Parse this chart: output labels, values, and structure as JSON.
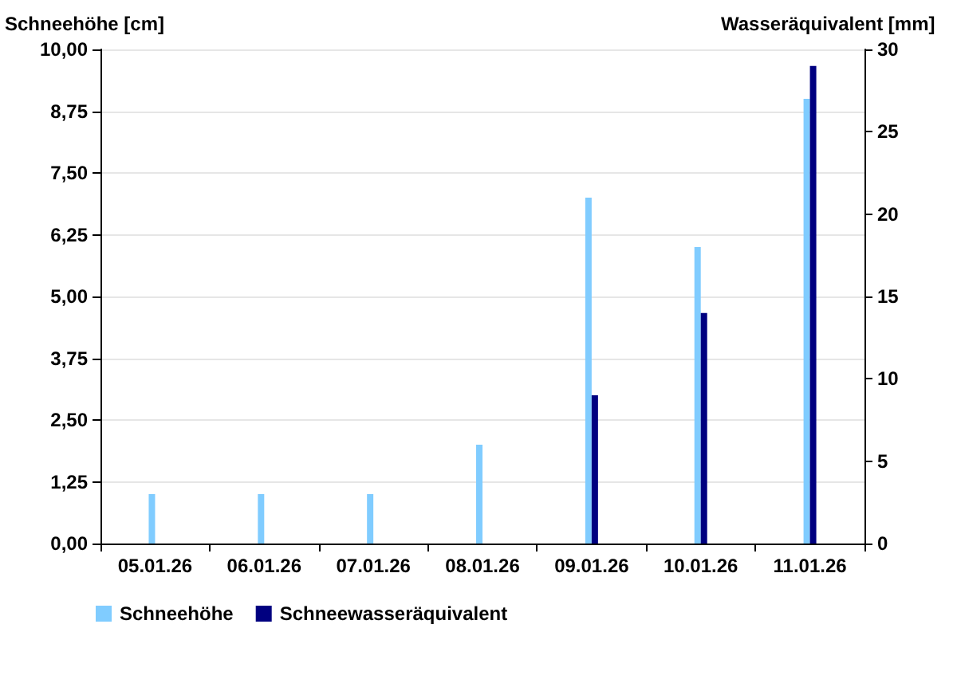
{
  "chart_data": {
    "type": "bar",
    "ylabel": "Schneehöhe [cm]",
    "y2label": "Wasseräquivalent [mm]",
    "categories": [
      "05.01.26",
      "06.01.26",
      "07.01.26",
      "08.01.26",
      "09.01.26",
      "10.01.26",
      "11.01.26"
    ],
    "series": [
      {
        "name": "Schneehöhe",
        "color": "#80ccff",
        "values": [
          1,
          1,
          1,
          2,
          7,
          6,
          9
        ]
      },
      {
        "name": "Schneewasseräquivalent",
        "color": "#000080",
        "axis": "y2",
        "values": [
          null,
          null,
          null,
          null,
          9,
          14,
          29
        ]
      }
    ],
    "ylim": [
      0,
      10
    ],
    "yticks": [
      {
        "value": 0,
        "label": "0,00"
      },
      {
        "value": 1.25,
        "label": "1,25"
      },
      {
        "value": 2.5,
        "label": "2,50"
      },
      {
        "value": 3.75,
        "label": "3,75"
      },
      {
        "value": 5,
        "label": "5,00"
      },
      {
        "value": 6.25,
        "label": "6,25"
      },
      {
        "value": 7.5,
        "label": "7,50"
      },
      {
        "value": 8.75,
        "label": "8,75"
      },
      {
        "value": 10,
        "label": "10,00"
      }
    ],
    "y2lim": [
      0,
      30
    ],
    "y2ticks": [
      0,
      5,
      10,
      15,
      20,
      25,
      30
    ],
    "grid": "y",
    "legend": "bottom left"
  }
}
